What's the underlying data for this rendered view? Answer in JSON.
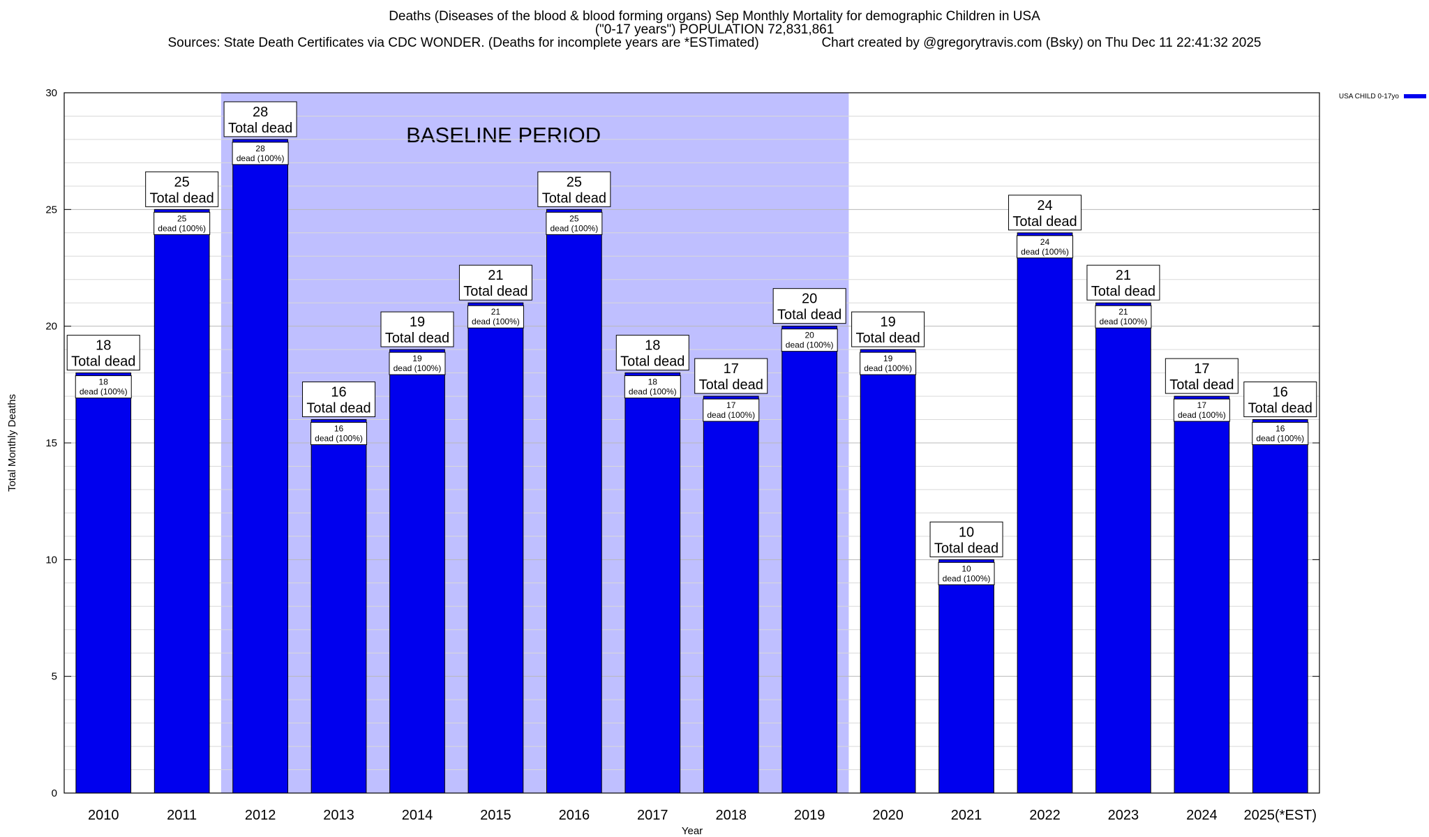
{
  "title_lines": [
    "Deaths (Diseases of the blood & blood forming organs) Sep Monthly Mortality for demographic Children in USA",
    "(\"0-17 years\") POPULATION 72,831,861",
    "Sources: State Death Certificates via CDC WONDER. (Deaths for incomplete years are *ESTimated)                 Chart created by @gregorytravis.com (Bsky) on Thu Dec 11 22:41:32 2025"
  ],
  "chart_data": {
    "type": "bar",
    "categories": [
      "2010",
      "2011",
      "2012",
      "2013",
      "2014",
      "2015",
      "2016",
      "2017",
      "2018",
      "2019",
      "2020",
      "2021",
      "2022",
      "2023",
      "2024",
      "2025(*EST)"
    ],
    "series": [
      {
        "name": "USA CHILD 0-17yo",
        "values": [
          18,
          25,
          28,
          16,
          19,
          21,
          25,
          18,
          17,
          20,
          19,
          10,
          24,
          21,
          17,
          16
        ],
        "color": "#0000ee"
      }
    ],
    "xlabel": "Year",
    "ylabel": "Total Monthly Deaths",
    "ylim": [
      0,
      30
    ],
    "yticks": [
      0,
      5,
      10,
      15,
      20,
      25,
      30
    ],
    "grid": true,
    "legend_position": "top-right",
    "bar_label_total_suffix": "Total dead",
    "bar_label_inner_suffix": "dead (100%)",
    "baseline_period": {
      "label": "BASELINE PERIOD",
      "start": "2012",
      "end": "2019",
      "color": "#bfbfff"
    }
  }
}
